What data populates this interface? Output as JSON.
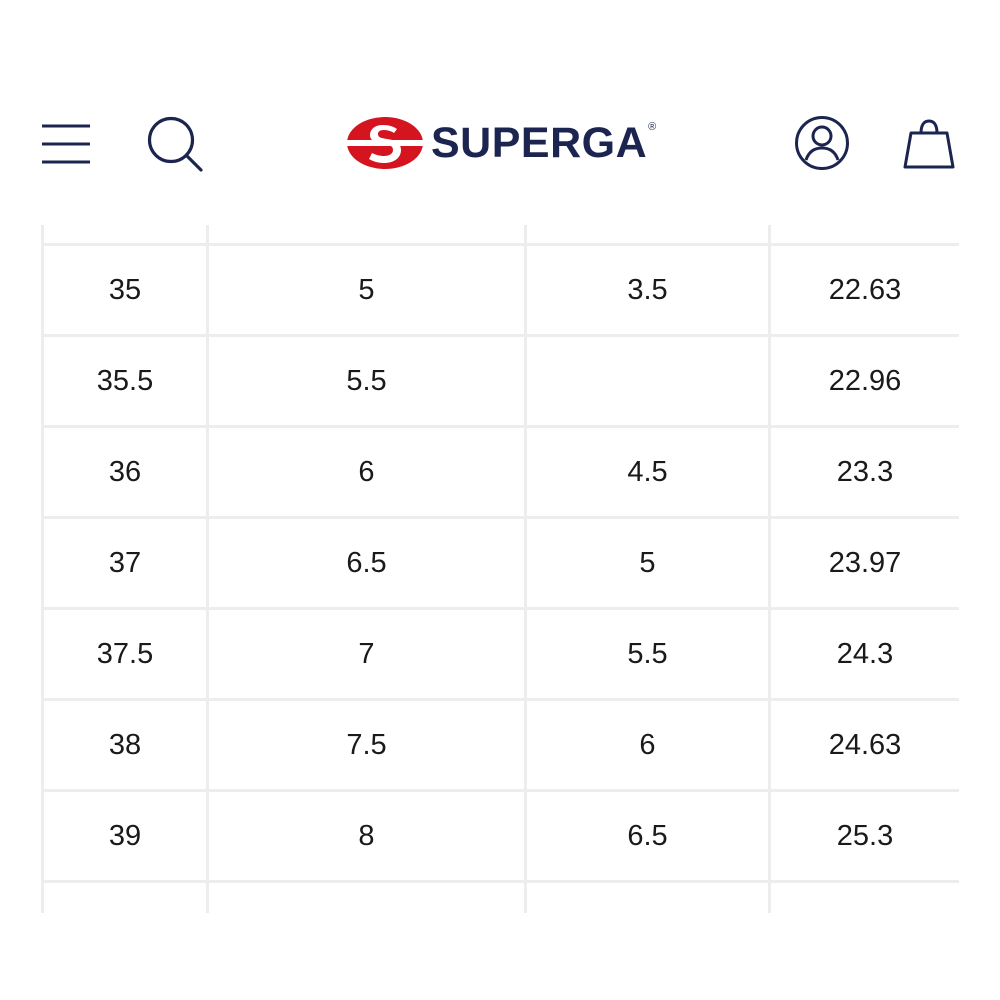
{
  "header": {
    "brand": "SUPERGA",
    "brand_reg": "®",
    "icons": {
      "menu": "hamburger-menu-icon",
      "search": "search-icon",
      "account": "user-account-icon",
      "bag": "shopping-bag-icon"
    },
    "colors": {
      "brand_text": "#1b2550",
      "brand_red": "#d4151f",
      "icon_stroke": "#1b2550"
    }
  },
  "size_table": {
    "rows": [
      [
        "35",
        "5",
        "3.5",
        "22.63"
      ],
      [
        "35.5",
        "5.5",
        "",
        "22.96"
      ],
      [
        "36",
        "6",
        "4.5",
        "23.3"
      ],
      [
        "37",
        "6.5",
        "5",
        "23.97"
      ],
      [
        "37.5",
        "7",
        "5.5",
        "24.3"
      ],
      [
        "38",
        "7.5",
        "6",
        "24.63"
      ],
      [
        "39",
        "8",
        "6.5",
        "25.3"
      ]
    ]
  }
}
